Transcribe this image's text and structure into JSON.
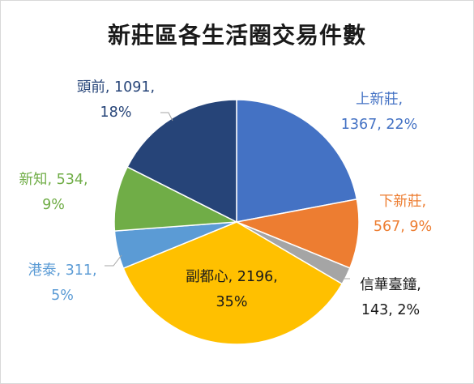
{
  "chart_data": {
    "type": "pie",
    "title": "新莊區各生活圈交易件數",
    "slices": [
      {
        "name": "上新莊",
        "value": 1367,
        "percent": "22%",
        "color": "#4472c4",
        "label_lines": [
          "上新莊,",
          "1367, 22%"
        ]
      },
      {
        "name": "下新莊",
        "value": 567,
        "percent": "9%",
        "color": "#ed7d31",
        "label_lines": [
          "下新莊,",
          "567, 9%"
        ]
      },
      {
        "name": "信華臺鐘",
        "value": 143,
        "percent": "2%",
        "color": "#a5a5a5",
        "label_lines": [
          "信華臺鐘,",
          "143, 2%"
        ]
      },
      {
        "name": "副都心",
        "value": 2196,
        "percent": "35%",
        "color": "#ffc000",
        "label_lines": [
          "副都心, 2196,",
          "35%"
        ]
      },
      {
        "name": "港泰",
        "value": 311,
        "percent": "5%",
        "color": "#5b9bd5",
        "label_lines": [
          "港泰, 311,",
          "5%"
        ]
      },
      {
        "name": "新知",
        "value": 534,
        "percent": "9%",
        "color": "#70ad47",
        "label_lines": [
          "新知, 534,",
          "9%"
        ]
      },
      {
        "name": "頭前",
        "value": 1091,
        "percent": "18%",
        "color": "#264478",
        "label_lines": [
          "頭前, 1091,",
          "18%"
        ]
      }
    ]
  }
}
